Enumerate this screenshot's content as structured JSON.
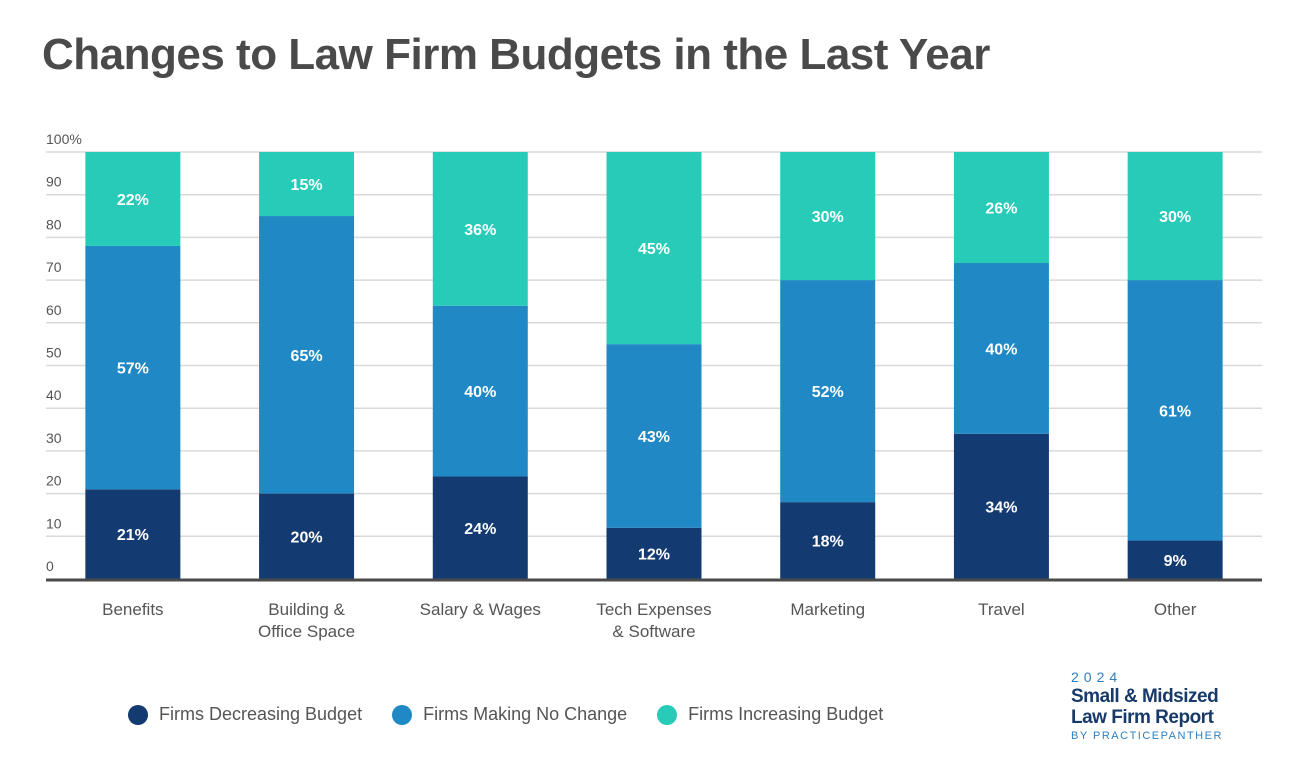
{
  "title": "Changes to Law Firm Budgets in the Last Year",
  "chart_data": {
    "type": "bar",
    "stacked": true,
    "categories": [
      [
        "Benefits"
      ],
      [
        "Building &",
        "Office Space"
      ],
      [
        "Salary & Wages"
      ],
      [
        "Tech Expenses",
        "& Software"
      ],
      [
        "Marketing"
      ],
      [
        "Travel"
      ],
      [
        "Other"
      ]
    ],
    "series": [
      {
        "name": "Firms Decreasing Budget",
        "color": "#143a72",
        "values": [
          21,
          20,
          24,
          12,
          18,
          34,
          9
        ]
      },
      {
        "name": "Firms Making No Change",
        "color": "#1f88c5",
        "values": [
          57,
          65,
          40,
          43,
          52,
          40,
          61
        ]
      },
      {
        "name": "Firms Increasing Budget",
        "color": "#27cbb8",
        "values": [
          22,
          15,
          36,
          45,
          30,
          26,
          30
        ]
      }
    ],
    "ylim": [
      0,
      100
    ],
    "yticks": [
      "0",
      "10",
      "20",
      "30",
      "40",
      "50",
      "60",
      "70",
      "80",
      "90",
      "100%"
    ],
    "value_suffix": "%",
    "grid": true,
    "legend_position": "bottom"
  },
  "brand": {
    "year": "2024",
    "line1": "Small & Midsized",
    "line2": "Law Firm Report",
    "by": "BY PRACTICEPANTHER"
  }
}
